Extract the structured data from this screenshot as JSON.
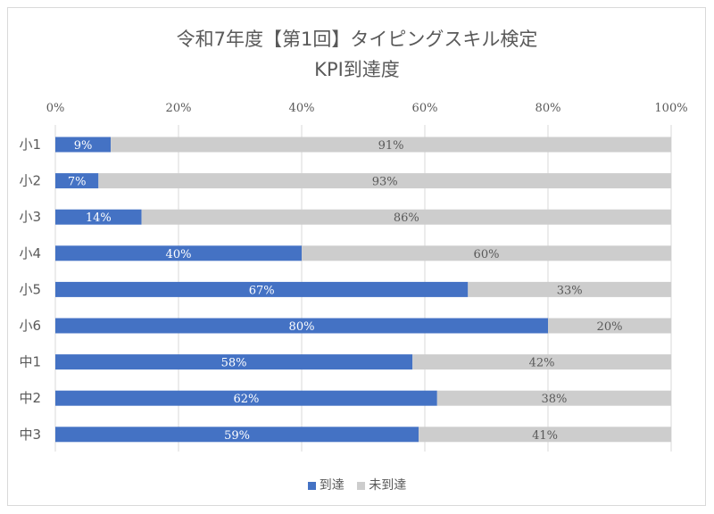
{
  "chart_data": {
    "type": "bar",
    "orientation": "horizontal",
    "stacked": "100%",
    "title": "令和7年度【第1回】タイピングスキル検定",
    "subtitle": "KPI到達度",
    "categories": [
      "小1",
      "小2",
      "小3",
      "小4",
      "小5",
      "小6",
      "中1",
      "中2",
      "中3"
    ],
    "series": [
      {
        "name": "到達",
        "color": "#4472C4",
        "values": [
          9,
          7,
          14,
          40,
          67,
          80,
          58,
          62,
          59
        ]
      },
      {
        "name": "未到達",
        "color": "#CDCDCD",
        "values": [
          91,
          93,
          86,
          60,
          33,
          20,
          42,
          38,
          41
        ]
      }
    ],
    "xlim": [
      0,
      100
    ],
    "xticks": [
      "0%",
      "20%",
      "40%",
      "60%",
      "80%",
      "100%"
    ],
    "grid": true,
    "legend": "bottom"
  }
}
